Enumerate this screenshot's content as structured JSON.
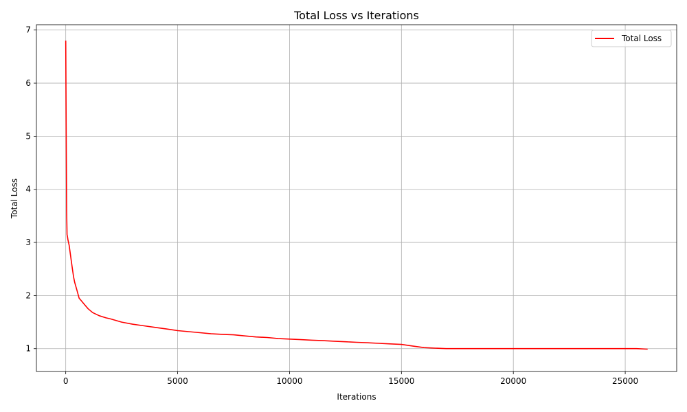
{
  "chart_data": {
    "type": "line",
    "title": "Total Loss vs Iterations",
    "xlabel": "Iterations",
    "ylabel": "Total Loss",
    "xlim": [
      -1310,
      27300
    ],
    "ylim": [
      0.57,
      7.1
    ],
    "xticks": [
      0,
      5000,
      10000,
      15000,
      20000,
      25000
    ],
    "xtick_labels": [
      "0",
      "5000",
      "10000",
      "15000",
      "20000",
      "25000"
    ],
    "yticks": [
      1,
      2,
      3,
      4,
      5,
      6,
      7
    ],
    "ytick_labels": [
      "1",
      "2",
      "3",
      "4",
      "5",
      "6",
      "7"
    ],
    "grid": true,
    "legend_position": "top-right",
    "series": [
      {
        "name": "Total Loss",
        "color": "#ff0000",
        "x": [
          0,
          20,
          40,
          60,
          80,
          100,
          150,
          200,
          250,
          300,
          350,
          400,
          500,
          600,
          700,
          800,
          1000,
          1200,
          1500,
          1800,
          2000,
          2500,
          3000,
          3500,
          4000,
          4500,
          5000,
          5500,
          6000,
          6500,
          7000,
          7500,
          8000,
          8500,
          9000,
          9500,
          10000,
          10500,
          11000,
          11500,
          12000,
          12500,
          13000,
          13500,
          14000,
          14500,
          15000,
          15500,
          16000,
          16500,
          17000,
          17500,
          18000,
          18500,
          19000,
          19500,
          20000,
          20500,
          21000,
          21500,
          22000,
          22500,
          23000,
          23500,
          24000,
          24500,
          25000,
          25500,
          26000
        ],
        "y": [
          6.8,
          5.2,
          3.6,
          3.15,
          3.1,
          3.05,
          2.95,
          2.8,
          2.65,
          2.5,
          2.35,
          2.25,
          2.1,
          1.95,
          1.9,
          1.85,
          1.75,
          1.68,
          1.62,
          1.58,
          1.56,
          1.5,
          1.46,
          1.43,
          1.4,
          1.37,
          1.34,
          1.32,
          1.3,
          1.28,
          1.27,
          1.26,
          1.24,
          1.22,
          1.21,
          1.19,
          1.18,
          1.17,
          1.16,
          1.15,
          1.14,
          1.13,
          1.12,
          1.11,
          1.1,
          1.09,
          1.08,
          1.05,
          1.02,
          1.01,
          1.0,
          1.0,
          1.0,
          1.0,
          1.0,
          1.0,
          1.0,
          1.0,
          1.0,
          1.0,
          1.0,
          1.0,
          1.0,
          1.0,
          1.0,
          1.0,
          1.0,
          1.0,
          0.99
        ]
      }
    ]
  }
}
